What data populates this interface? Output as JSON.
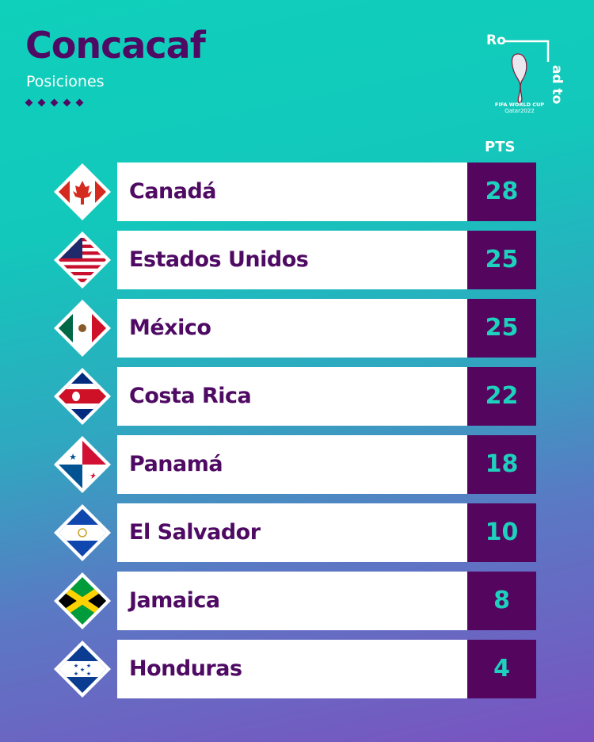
{
  "header": {
    "title": "Concacaf",
    "subtitle": "Posiciones"
  },
  "logo": {
    "line1": "Ro",
    "line2": "ad to",
    "event": "FIFA WORLD CUP",
    "edition": "Qatar2022"
  },
  "columns": {
    "points": "PTS"
  },
  "colors": {
    "text": "#4f0a63",
    "points_bg": "#54065f",
    "points_text": "#1ed1bd",
    "bg_top": "#0fd0bb",
    "bg_bottom": "#7a52c0"
  },
  "standings": [
    {
      "team": "Canadá",
      "points": "28",
      "flag": "canada-flag"
    },
    {
      "team": "Estados Unidos",
      "points": "25",
      "flag": "usa-flag"
    },
    {
      "team": "México",
      "points": "25",
      "flag": "mexico-flag"
    },
    {
      "team": "Costa Rica",
      "points": "22",
      "flag": "costa-rica-flag"
    },
    {
      "team": "Panamá",
      "points": "18",
      "flag": "panama-flag"
    },
    {
      "team": "El Salvador",
      "points": "10",
      "flag": "el-salvador-flag"
    },
    {
      "team": "Jamaica",
      "points": "8",
      "flag": "jamaica-flag"
    },
    {
      "team": "Honduras",
      "points": "4",
      "flag": "honduras-flag"
    }
  ]
}
